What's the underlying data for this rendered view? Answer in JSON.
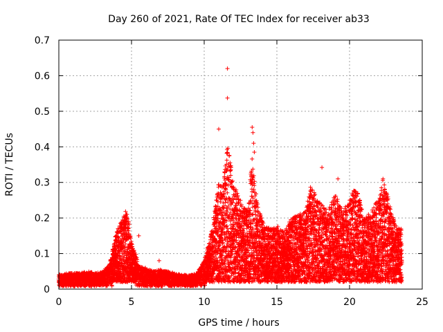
{
  "chart_data": {
    "type": "scatter",
    "title": "Day 260 of 2021, Rate Of TEC Index for receiver ab33",
    "xlabel": "GPS time / hours",
    "ylabel": "ROTI / TECUs",
    "xlim": [
      0,
      25
    ],
    "ylim": [
      0,
      0.7
    ],
    "xticks": [
      0,
      5,
      10,
      15,
      20,
      25
    ],
    "yticks": [
      0,
      0.1,
      0.2,
      0.3,
      0.4,
      0.5,
      0.6,
      0.7
    ],
    "xtick_labels": [
      "0",
      "5",
      "10",
      "15",
      "20",
      "25"
    ],
    "ytick_labels": [
      "0",
      "0.1",
      "0.2",
      "0.3",
      "0.4",
      "0.5",
      "0.6",
      "0.7"
    ],
    "grid": true,
    "marker": "+",
    "color": "#ff0000",
    "series": [
      {
        "name": "ROTI",
        "envelope": [
          [
            0.0,
            0.04
          ],
          [
            0.5,
            0.045
          ],
          [
            1.0,
            0.045
          ],
          [
            1.5,
            0.045
          ],
          [
            2.0,
            0.05
          ],
          [
            2.5,
            0.045
          ],
          [
            3.0,
            0.05
          ],
          [
            3.5,
            0.07
          ],
          [
            4.0,
            0.17
          ],
          [
            4.3,
            0.19
          ],
          [
            4.6,
            0.22
          ],
          [
            4.8,
            0.2
          ],
          [
            5.0,
            0.13
          ],
          [
            5.3,
            0.1
          ],
          [
            5.5,
            0.065
          ],
          [
            6.0,
            0.06
          ],
          [
            6.5,
            0.05
          ],
          [
            7.0,
            0.055
          ],
          [
            7.5,
            0.05
          ],
          [
            8.0,
            0.045
          ],
          [
            8.5,
            0.04
          ],
          [
            9.0,
            0.04
          ],
          [
            9.5,
            0.045
          ],
          [
            10.0,
            0.08
          ],
          [
            10.5,
            0.16
          ],
          [
            11.0,
            0.3
          ],
          [
            11.3,
            0.29
          ],
          [
            11.6,
            0.41
          ],
          [
            11.8,
            0.36
          ],
          [
            12.0,
            0.3
          ],
          [
            12.3,
            0.27
          ],
          [
            12.6,
            0.24
          ],
          [
            13.0,
            0.22
          ],
          [
            13.3,
            0.37
          ],
          [
            13.6,
            0.26
          ],
          [
            14.0,
            0.19
          ],
          [
            14.5,
            0.17
          ],
          [
            15.0,
            0.18
          ],
          [
            15.5,
            0.16
          ],
          [
            16.0,
            0.2
          ],
          [
            16.5,
            0.21
          ],
          [
            17.0,
            0.22
          ],
          [
            17.3,
            0.29
          ],
          [
            17.6,
            0.27
          ],
          [
            18.0,
            0.24
          ],
          [
            18.5,
            0.22
          ],
          [
            19.0,
            0.27
          ],
          [
            19.5,
            0.22
          ],
          [
            20.0,
            0.25
          ],
          [
            20.3,
            0.28
          ],
          [
            20.6,
            0.27
          ],
          [
            21.0,
            0.2
          ],
          [
            21.5,
            0.22
          ],
          [
            22.0,
            0.26
          ],
          [
            22.3,
            0.31
          ],
          [
            22.6,
            0.27
          ],
          [
            23.0,
            0.2
          ],
          [
            23.3,
            0.17
          ],
          [
            23.6,
            0.17
          ]
        ],
        "outliers": [
          [
            11.6,
            0.62
          ],
          [
            11.6,
            0.537
          ],
          [
            11.0,
            0.45
          ],
          [
            13.3,
            0.455
          ],
          [
            13.35,
            0.44
          ],
          [
            13.4,
            0.41
          ],
          [
            13.45,
            0.385
          ],
          [
            18.1,
            0.342
          ],
          [
            19.2,
            0.31
          ],
          [
            22.3,
            0.31
          ],
          [
            6.9,
            0.08
          ],
          [
            4.1,
            0.16
          ],
          [
            5.5,
            0.15
          ],
          [
            14.0,
            0.18
          ],
          [
            19.6,
            0.195
          ]
        ]
      }
    ]
  }
}
